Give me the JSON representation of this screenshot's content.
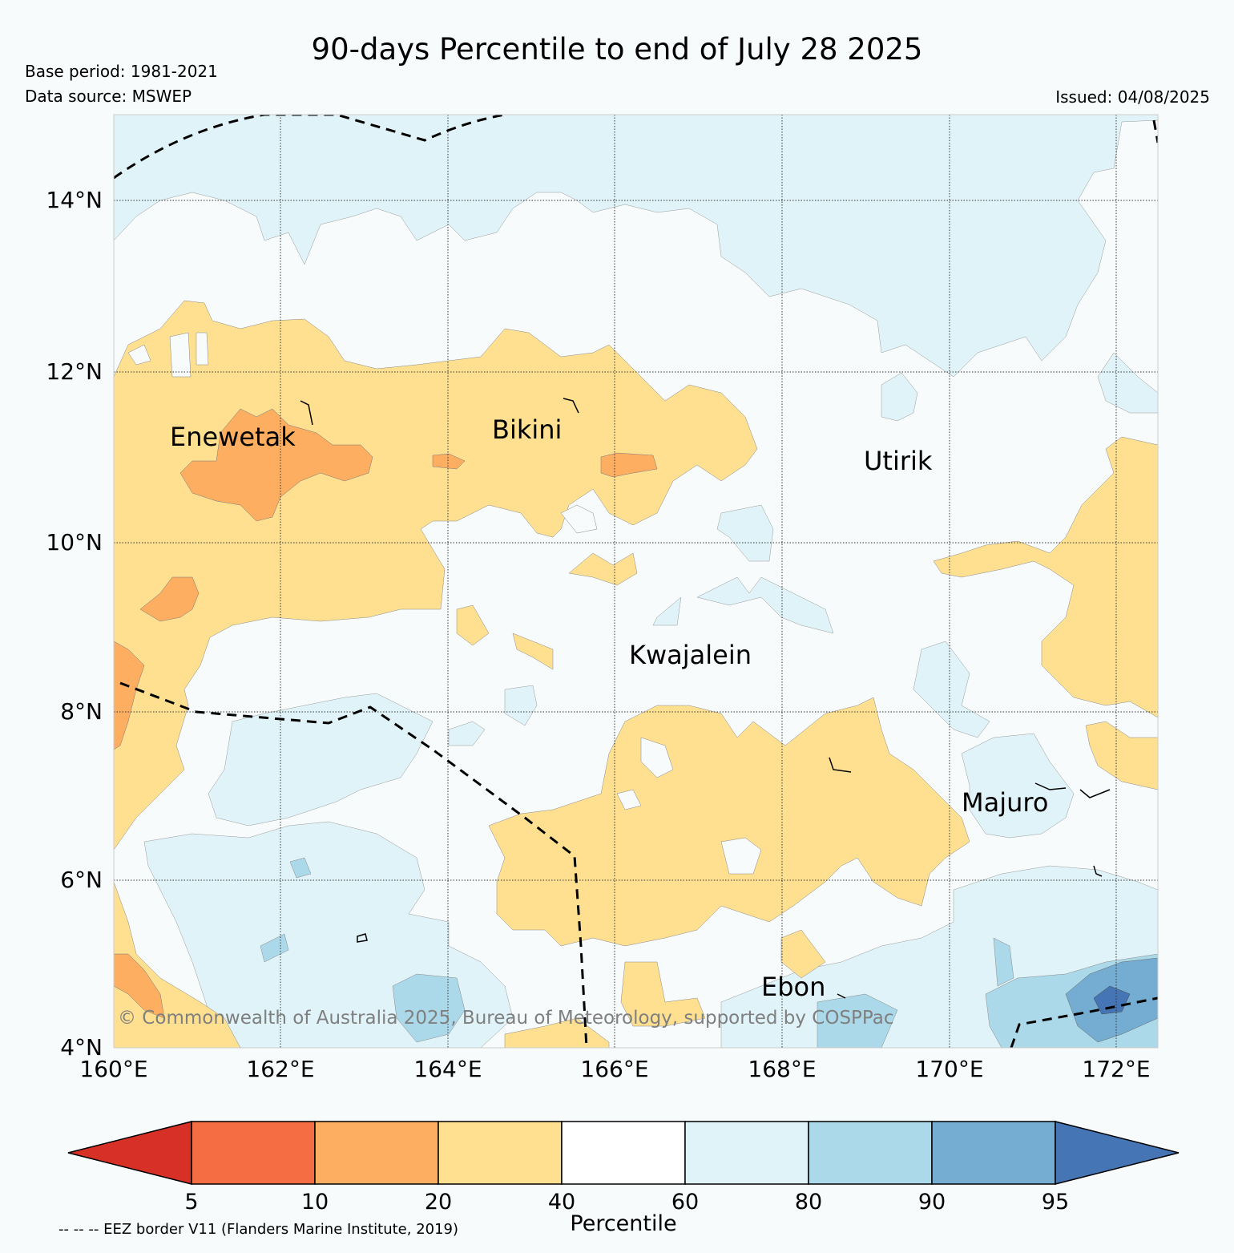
{
  "header": {
    "title": "90-days Percentile to end of July 28 2025",
    "base_period": "Base period: 1981-2021",
    "data_source": "Data source: MSWEP",
    "issued": "Issued: 04/08/2025"
  },
  "map": {
    "lat_labels": [
      "14°N",
      "12°N",
      "10°N",
      "8°N",
      "6°N",
      "4°N"
    ],
    "lon_labels": [
      "160°E",
      "162°E",
      "164°E",
      "166°E",
      "168°E",
      "170°E",
      "172°E"
    ],
    "places": [
      "Enewetak",
      "Bikini",
      "Utirik",
      "Kwajalein",
      "Majuro",
      "Ebon"
    ],
    "copyright": "© Commonwealth of Australia 2025, Bureau of Meteorology, supported by COSPPac",
    "colors": {
      "p0_5": "#d73027",
      "p5_10": "#f46d43",
      "p10_20": "#fdae61",
      "p20_40": "#fee090",
      "p40_60": "#ffffff",
      "p60_80": "#e0f3f8",
      "p80_90": "#abd9e9",
      "p90_95": "#74add1",
      "p95_100": "#4575b4"
    }
  },
  "colorbar": {
    "ticks": [
      "5",
      "10",
      "20",
      "40",
      "60",
      "80",
      "90",
      "95"
    ],
    "label": "Percentile"
  },
  "legend": {
    "eez_note": "-- -- -- EEZ border V11 (Flanders Marine Institute, 2019)"
  }
}
